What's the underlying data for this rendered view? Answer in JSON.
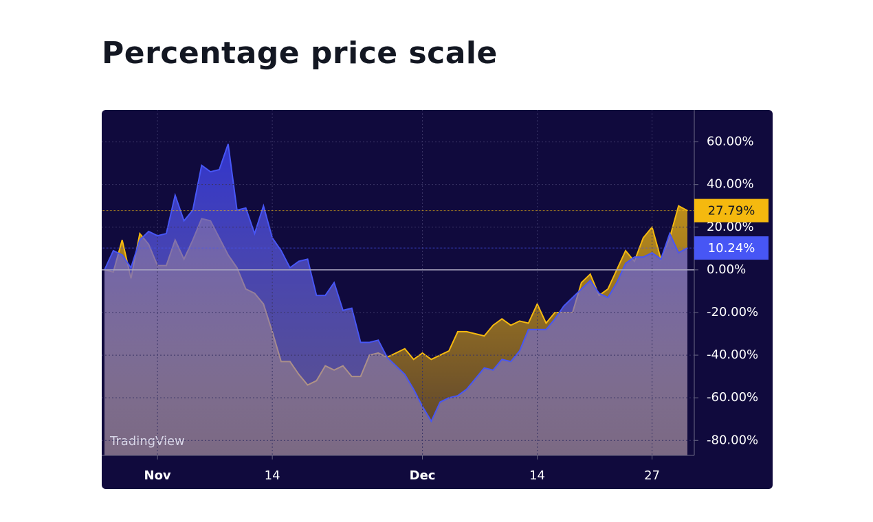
{
  "title": "Percentage price scale",
  "chart_data": {
    "type": "area",
    "watermark": "TradingView",
    "x": [
      "10-26",
      "10-27",
      "10-28",
      "10-29",
      "10-30",
      "10-31",
      "11-01",
      "11-02",
      "11-03",
      "11-04",
      "11-05",
      "11-06",
      "11-07",
      "11-08",
      "11-09",
      "11-10",
      "11-11",
      "11-12",
      "11-13",
      "11-14",
      "11-15",
      "11-16",
      "11-17",
      "11-18",
      "11-19",
      "11-20",
      "11-21",
      "11-22",
      "11-23",
      "11-24",
      "11-25",
      "11-26",
      "11-27",
      "11-28",
      "11-29",
      "11-30",
      "12-01",
      "12-02",
      "12-03",
      "12-04",
      "12-05",
      "12-06",
      "12-07",
      "12-08",
      "12-09",
      "12-10",
      "12-11",
      "12-12",
      "12-13",
      "12-14",
      "12-15",
      "12-16",
      "12-17",
      "12-18",
      "12-19",
      "12-20",
      "12-21",
      "12-22",
      "12-23",
      "12-24",
      "12-25",
      "12-26",
      "12-27",
      "12-28",
      "12-29",
      "12-30",
      "12-31"
    ],
    "series": [
      {
        "color": "#f5b90f",
        "values": [
          0,
          -1,
          14,
          -4,
          17,
          12,
          2,
          2,
          14,
          5,
          14,
          24,
          23,
          15,
          7,
          1,
          -9,
          -11,
          -16,
          -29,
          -43,
          -43,
          -49,
          -54,
          -52,
          -45,
          -47,
          -45,
          -50,
          -50,
          -40,
          -39,
          -41,
          -39,
          -37,
          -42,
          -39,
          -42,
          -40,
          -38,
          -29,
          -29,
          -30,
          -31,
          -26,
          -23,
          -26,
          -24,
          -25,
          -16,
          -25,
          -20,
          -20,
          -20,
          -6,
          -2,
          -12,
          -9,
          0,
          9,
          4,
          15,
          20,
          5,
          15,
          30,
          27.79
        ],
        "value_labels": [
          null,
          null,
          null,
          null,
          null,
          null,
          null,
          null,
          null,
          null,
          null,
          null,
          null,
          null,
          null,
          null,
          null,
          null,
          null,
          null,
          null,
          null,
          null,
          null,
          null,
          null,
          null,
          null,
          null,
          null,
          null,
          null,
          null,
          null,
          null,
          null,
          null,
          null,
          null,
          null,
          null,
          null,
          null,
          null,
          null,
          null,
          null,
          null,
          null,
          null,
          null,
          null,
          null,
          null,
          null,
          null,
          null,
          null,
          null,
          null,
          null,
          null,
          null,
          null,
          null,
          null,
          "27.79%"
        ]
      },
      {
        "color": "#4756f5",
        "values": [
          0,
          9,
          7,
          1,
          14,
          18,
          16,
          17,
          35,
          23,
          28,
          49,
          46,
          47,
          59,
          28,
          29,
          17,
          30,
          15,
          9,
          1,
          4,
          5,
          -12,
          -12,
          -6,
          -19,
          -18,
          -34,
          -34,
          -33,
          -41,
          -45,
          -49,
          -56,
          -64,
          -71,
          -62,
          -60,
          -59,
          -56,
          -51,
          -46,
          -47,
          -42,
          -43,
          -38,
          -28,
          -28,
          -28,
          -23,
          -17,
          -13,
          -9,
          -5,
          -11,
          -13,
          -6,
          3,
          6,
          6,
          8,
          5,
          17,
          8,
          10.24
        ],
        "value_labels": [
          null,
          null,
          null,
          null,
          null,
          null,
          null,
          null,
          null,
          null,
          null,
          null,
          null,
          null,
          null,
          null,
          null,
          null,
          null,
          null,
          null,
          null,
          null,
          null,
          null,
          null,
          null,
          null,
          null,
          null,
          null,
          null,
          null,
          null,
          null,
          null,
          null,
          null,
          null,
          null,
          null,
          null,
          null,
          null,
          null,
          null,
          null,
          null,
          null,
          null,
          null,
          null,
          null,
          null,
          null,
          null,
          null,
          null,
          null,
          null,
          null,
          null,
          null,
          null,
          null,
          null,
          "10.24%"
        ]
      }
    ],
    "ylim": [
      -87,
      75
    ],
    "yticks": [
      {
        "value": 60,
        "label": "60.00%"
      },
      {
        "value": 40,
        "label": "40.00%"
      },
      {
        "value": 20,
        "label": "20.00%"
      },
      {
        "value": 0,
        "label": "0.00%"
      },
      {
        "value": -20,
        "label": "-20.00%"
      },
      {
        "value": -40,
        "label": "-40.00%"
      },
      {
        "value": -60,
        "label": "-60.00%"
      },
      {
        "value": -80,
        "label": "-80.00%"
      }
    ],
    "xticks": [
      {
        "value": "11-01",
        "label": "Nov"
      },
      {
        "value": "11-14",
        "label": "14"
      },
      {
        "value": "12-01",
        "label": "Dec"
      },
      {
        "value": "12-14",
        "label": "14"
      },
      {
        "value": "12-27",
        "label": "27"
      }
    ],
    "grid": true
  }
}
